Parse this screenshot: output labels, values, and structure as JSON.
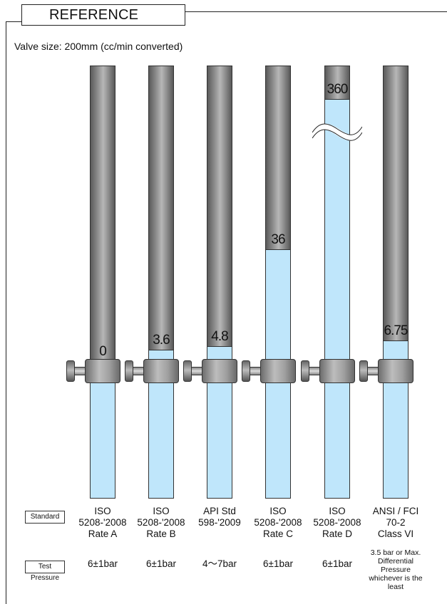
{
  "header": {
    "title": "REFERENCE"
  },
  "subtitle": "Valve size: 200mm (cc/min converted)",
  "row_labels": {
    "standard": "Standard",
    "test_pressure": "Test Pressure"
  },
  "colors": {
    "water": "#bfe6fb",
    "tube_gray": "#8a8a8a",
    "outline": "#333333"
  },
  "columns": [
    {
      "value": "0",
      "level_fraction": 0.0,
      "broken_scale": false,
      "standard": [
        "ISO",
        "5208-'2008",
        "Rate A"
      ],
      "test_pressure": "6±1bar"
    },
    {
      "value": "3.6",
      "level_fraction": 0.036,
      "broken_scale": false,
      "standard": [
        "ISO",
        "5208-'2008",
        "Rate B"
      ],
      "test_pressure": "6±1bar"
    },
    {
      "value": "4.8",
      "level_fraction": 0.048,
      "broken_scale": false,
      "standard": [
        "API Std",
        "598-'2009"
      ],
      "test_pressure": "4～7bar"
    },
    {
      "value": "36",
      "level_fraction": 0.36,
      "broken_scale": false,
      "standard": [
        "ISO",
        "5208-'2008",
        "Rate C"
      ],
      "test_pressure": "6±1bar"
    },
    {
      "value": "360",
      "level_fraction": 1.0,
      "broken_scale": true,
      "standard": [
        "ISO",
        "5208-'2008",
        "Rate D"
      ],
      "test_pressure": "6±1bar"
    },
    {
      "value": "6.75",
      "level_fraction": 0.0675,
      "broken_scale": false,
      "standard": [
        "ANSI / FCI",
        "70-2",
        "Class VI"
      ],
      "test_pressure": "3.5 bar or Max. Differential Pressure whichever is the least"
    }
  ]
}
